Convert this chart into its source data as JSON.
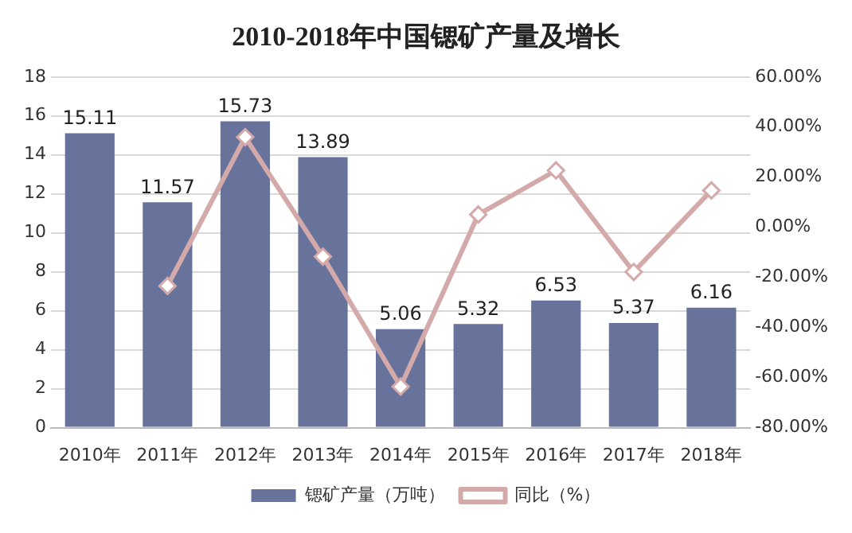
{
  "chart_data": {
    "type": "bar",
    "title": "2010-2018年中国锶矿产量及增长",
    "categories": [
      "2010年",
      "2011年",
      "2012年",
      "2013年",
      "2014年",
      "2015年",
      "2016年",
      "2017年",
      "2018年"
    ],
    "series": [
      {
        "name": "锶矿产量（万吨）",
        "color": "#68739c",
        "values": [
          15.11,
          11.57,
          15.73,
          13.89,
          5.06,
          5.32,
          6.53,
          5.37,
          6.16
        ],
        "value_labels": [
          "15.11",
          "11.57",
          "15.73",
          "13.89",
          "5.06",
          "5.32",
          "6.53",
          "5.37",
          "6.16"
        ]
      },
      {
        "name": "同比（%）",
        "type": "line",
        "axis": "y2",
        "color": "#d4a9a9",
        "values": [
          null,
          -23.4,
          36.0,
          -11.7,
          -63.6,
          5.1,
          22.7,
          -17.8,
          14.7
        ]
      }
    ],
    "ylim": [
      0,
      18
    ],
    "yticks": [
      0,
      2,
      4,
      6,
      8,
      10,
      12,
      14,
      16,
      18
    ],
    "y2lim": [
      -80,
      60
    ],
    "y2ticks": [
      {
        "value": -80,
        "label": "-80.00%"
      },
      {
        "value": -60,
        "label": "-60.00%"
      },
      {
        "value": -40,
        "label": "-40.00%"
      },
      {
        "value": -20,
        "label": "-20.00%"
      },
      {
        "value": 0,
        "label": "0.00%"
      },
      {
        "value": 20,
        "label": "20.00%"
      },
      {
        "value": 40,
        "label": "40.00%"
      },
      {
        "value": 60,
        "label": "60.00%"
      }
    ],
    "grid": "y",
    "legend": "bottom",
    "marker": "diamond",
    "line_style": "solid"
  }
}
